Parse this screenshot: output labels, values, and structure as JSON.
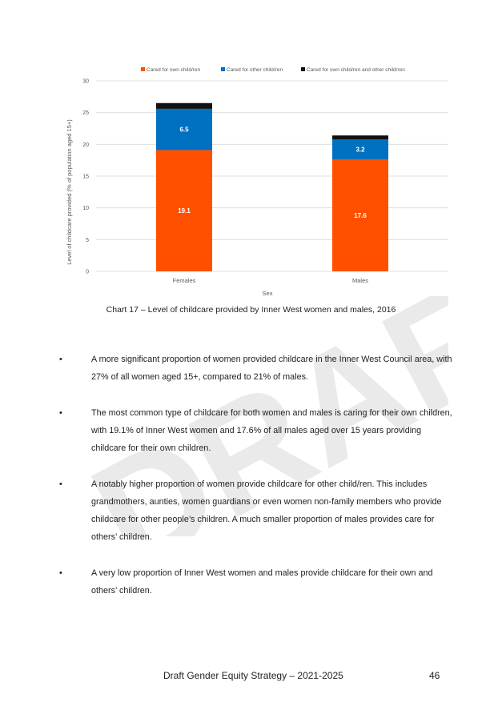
{
  "watermark": "DRAFT",
  "chart_data": {
    "type": "bar",
    "stacked": true,
    "categories": [
      "Females",
      "Males"
    ],
    "series": [
      {
        "name": "Cared for own child/ren",
        "color": "#ff5000",
        "values": [
          19.1,
          17.6
        ],
        "labels": [
          "19.1",
          "17.6"
        ]
      },
      {
        "name": "Cared for other child/ren",
        "color": "#0070c0",
        "values": [
          6.5,
          3.2
        ],
        "labels": [
          "6.5",
          "3.2"
        ]
      },
      {
        "name": "Cared for own child/ren and other child/ren",
        "color": "#111111",
        "values": [
          0.9,
          0.6
        ],
        "labels": [
          "",
          ""
        ]
      }
    ],
    "xlabel": "Sex",
    "ylabel": "Level of childcare provided (% of population aged 15+)",
    "ylim": [
      0,
      30
    ],
    "yticks": [
      "0",
      "5",
      "10",
      "15",
      "20",
      "25",
      "30"
    ],
    "grid": true,
    "legend": "top"
  },
  "caption": "Chart 17 – Level of childcare provided by Inner West women and males, 2016",
  "bullets": [
    "A more significant proportion of women provided childcare in the Inner West Council area, with 27% of all women aged 15+, compared to 21% of males.",
    "The most common type of childcare for both women and males is caring for their own children, with 19.1% of Inner West women and 17.6% of all males aged over 15 years providing childcare for their own children.",
    "A notably higher proportion of women provide childcare for other child/ren. This includes grandmothers, aunties, women guardians or even women non-family members who provide childcare for other people’s children. A much smaller proportion of males provides care for others’ children.",
    "A very low proportion of Inner West women and males provide childcare for their own and others’ children."
  ],
  "bullet_symbol": "•",
  "footer": {
    "title": "Draft Gender Equity Strategy – 2021-2025",
    "page": "46"
  }
}
